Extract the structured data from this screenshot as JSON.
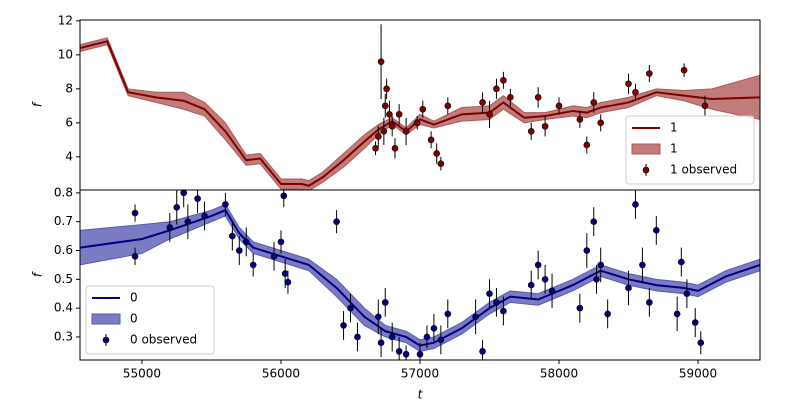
{
  "chart_data": [
    {
      "type": "line",
      "ylabel": "f",
      "xlim": [
        54554,
        59446
      ],
      "ylim": [
        2.05,
        12.05
      ],
      "yticks": [
        4,
        6,
        8,
        10,
        12
      ],
      "legend": "lower right",
      "series": [
        {
          "name": "1",
          "kind": "line",
          "color": "#800000",
          "x": [
            54554,
            54750,
            54900,
            55100,
            55300,
            55450,
            55600,
            55750,
            55850,
            56000,
            56150,
            56200,
            56300,
            56450,
            56600,
            56700,
            56800,
            56900,
            57000,
            57100,
            57300,
            57500,
            57600,
            57750,
            57900,
            58100,
            58200,
            58300,
            58500,
            58700,
            58900,
            59100,
            59446
          ],
          "values": [
            10.4,
            10.8,
            7.8,
            7.5,
            7.3,
            6.8,
            5.5,
            3.8,
            3.9,
            2.4,
            2.4,
            2.3,
            2.8,
            3.8,
            4.9,
            5.6,
            6.1,
            5.5,
            6.2,
            5.9,
            6.5,
            6.6,
            7.2,
            6.3,
            6.4,
            6.7,
            6.6,
            6.9,
            7.2,
            7.8,
            7.6,
            7.4,
            7.5
          ]
        },
        {
          "name": "1",
          "kind": "band",
          "color": "#b05a5a",
          "x": [
            54554,
            54750,
            54900,
            55100,
            55300,
            55450,
            55600,
            55750,
            55850,
            56000,
            56150,
            56200,
            56300,
            56450,
            56600,
            56700,
            56800,
            56900,
            57000,
            57100,
            57300,
            57500,
            57600,
            57750,
            57900,
            58100,
            58200,
            58300,
            58500,
            58700,
            58900,
            59100,
            59446
          ],
          "lower": [
            10.2,
            10.6,
            7.6,
            7.2,
            6.8,
            6.4,
            5.0,
            3.5,
            3.6,
            2.1,
            2.1,
            2.0,
            2.5,
            3.4,
            4.5,
            5.3,
            5.9,
            5.3,
            5.9,
            5.7,
            6.1,
            6.2,
            6.8,
            6.0,
            6.2,
            6.4,
            6.3,
            6.6,
            6.9,
            7.6,
            7.3,
            6.8,
            6.2
          ],
          "upper": [
            10.6,
            11.0,
            8.0,
            7.8,
            7.8,
            7.2,
            6.0,
            4.1,
            4.2,
            2.7,
            2.7,
            2.6,
            3.1,
            4.2,
            5.3,
            5.9,
            6.3,
            5.7,
            6.5,
            6.1,
            6.9,
            7.0,
            7.6,
            6.6,
            6.6,
            7.0,
            6.9,
            7.2,
            7.5,
            8.0,
            7.9,
            8.0,
            8.8
          ]
        },
        {
          "name": "1 observed",
          "kind": "errorbar",
          "color": "#800000",
          "x": [
            56680,
            56700,
            56720,
            56740,
            56750,
            56760,
            56780,
            56800,
            56820,
            56850,
            56900,
            56980,
            57020,
            57080,
            57120,
            57150,
            57200,
            57450,
            57500,
            57550,
            57600,
            57650,
            57800,
            57850,
            57900,
            58000,
            58150,
            58200,
            58250,
            58300,
            58500,
            58550,
            58650,
            58900,
            59050
          ],
          "values": [
            4.5,
            5.2,
            9.6,
            5.5,
            7.0,
            8.0,
            6.5,
            5.8,
            4.5,
            6.5,
            5.5,
            6.0,
            6.8,
            5.0,
            4.2,
            3.6,
            7.0,
            7.2,
            6.5,
            8.0,
            8.5,
            7.5,
            5.5,
            7.5,
            5.8,
            7.0,
            6.2,
            4.7,
            7.2,
            6.0,
            8.3,
            7.8,
            8.9,
            9.1,
            7.0
          ],
          "errors": [
            0.4,
            0.6,
            2.2,
            0.8,
            0.7,
            0.6,
            0.8,
            0.6,
            0.6,
            0.6,
            0.8,
            0.4,
            0.5,
            0.5,
            0.6,
            0.4,
            0.5,
            0.6,
            0.8,
            0.6,
            0.5,
            0.5,
            0.5,
            0.6,
            0.6,
            0.5,
            0.5,
            0.5,
            0.6,
            0.5,
            0.6,
            0.5,
            0.5,
            0.4,
            0.6
          ]
        }
      ]
    },
    {
      "type": "line",
      "ylabel": "f",
      "xlabel": "t",
      "xlim": [
        54554,
        59446
      ],
      "ylim": [
        0.22,
        0.81
      ],
      "xticks": [
        55000,
        56000,
        57000,
        58000,
        59000
      ],
      "yticks": [
        0.3,
        0.4,
        0.5,
        0.6,
        0.7,
        0.8
      ],
      "legend": "lower left",
      "series": [
        {
          "name": "0",
          "kind": "line",
          "color": "#000080",
          "x": [
            54554,
            55000,
            55200,
            55500,
            55600,
            55700,
            55800,
            56000,
            56200,
            56400,
            56600,
            56750,
            56900,
            57000,
            57100,
            57300,
            57500,
            57650,
            57850,
            58100,
            58300,
            58500,
            58700,
            58900,
            59000,
            59200,
            59446
          ],
          "values": [
            0.61,
            0.64,
            0.67,
            0.72,
            0.74,
            0.66,
            0.61,
            0.58,
            0.55,
            0.47,
            0.37,
            0.32,
            0.3,
            0.27,
            0.28,
            0.33,
            0.4,
            0.44,
            0.43,
            0.48,
            0.53,
            0.5,
            0.48,
            0.47,
            0.46,
            0.51,
            0.55
          ]
        },
        {
          "name": "0",
          "kind": "band",
          "color": "#5a5ab4",
          "x": [
            54554,
            55000,
            55200,
            55500,
            55600,
            55700,
            55800,
            56000,
            56200,
            56400,
            56600,
            56750,
            56900,
            57000,
            57100,
            57300,
            57500,
            57650,
            57850,
            58100,
            58300,
            58500,
            58700,
            58900,
            59000,
            59200,
            59446
          ],
          "lower": [
            0.55,
            0.59,
            0.64,
            0.7,
            0.72,
            0.64,
            0.59,
            0.56,
            0.53,
            0.44,
            0.34,
            0.3,
            0.28,
            0.25,
            0.26,
            0.31,
            0.38,
            0.42,
            0.41,
            0.46,
            0.51,
            0.48,
            0.46,
            0.45,
            0.44,
            0.49,
            0.53
          ],
          "upper": [
            0.67,
            0.69,
            0.7,
            0.74,
            0.76,
            0.68,
            0.63,
            0.6,
            0.57,
            0.5,
            0.4,
            0.34,
            0.32,
            0.29,
            0.3,
            0.35,
            0.42,
            0.46,
            0.45,
            0.5,
            0.55,
            0.52,
            0.5,
            0.49,
            0.48,
            0.53,
            0.57
          ]
        },
        {
          "name": "0 observed",
          "kind": "errorbar",
          "color": "#000080",
          "x": [
            54950,
            54950,
            55200,
            55250,
            55300,
            55330,
            55400,
            55450,
            55600,
            55650,
            55700,
            55750,
            55800,
            55950,
            56000,
            56030,
            56050,
            56020,
            56400,
            56450,
            56500,
            56550,
            56700,
            56720,
            56750,
            56800,
            56850,
            56900,
            57000,
            57050,
            57100,
            57150,
            57200,
            57400,
            57450,
            57500,
            57550,
            57600,
            57800,
            57850,
            57900,
            57950,
            58150,
            58200,
            58250,
            58270,
            58300,
            58350,
            58500,
            58550,
            58600,
            58650,
            58700,
            58850,
            58880,
            58920,
            58980,
            59020
          ],
          "values": [
            0.73,
            0.58,
            0.68,
            0.75,
            0.8,
            0.7,
            0.78,
            0.72,
            0.76,
            0.65,
            0.6,
            0.63,
            0.55,
            0.58,
            0.63,
            0.52,
            0.49,
            0.79,
            0.7,
            0.34,
            0.4,
            0.3,
            0.37,
            0.28,
            0.42,
            0.3,
            0.25,
            0.24,
            0.24,
            0.3,
            0.33,
            0.29,
            0.38,
            0.37,
            0.25,
            0.45,
            0.42,
            0.39,
            0.48,
            0.55,
            0.5,
            0.46,
            0.4,
            0.6,
            0.7,
            0.5,
            0.55,
            0.38,
            0.47,
            0.76,
            0.55,
            0.42,
            0.67,
            0.38,
            0.56,
            0.45,
            0.35,
            0.28
          ],
          "errors": [
            0.03,
            0.03,
            0.05,
            0.06,
            0.05,
            0.06,
            0.05,
            0.05,
            0.04,
            0.05,
            0.05,
            0.05,
            0.04,
            0.05,
            0.04,
            0.05,
            0.04,
            0.04,
            0.04,
            0.05,
            0.05,
            0.05,
            0.06,
            0.05,
            0.05,
            0.05,
            0.05,
            0.03,
            0.04,
            0.04,
            0.05,
            0.05,
            0.05,
            0.06,
            0.04,
            0.05,
            0.05,
            0.05,
            0.05,
            0.05,
            0.05,
            0.06,
            0.05,
            0.06,
            0.05,
            0.05,
            0.06,
            0.05,
            0.06,
            0.05,
            0.06,
            0.05,
            0.05,
            0.06,
            0.05,
            0.05,
            0.05,
            0.04
          ]
        }
      ]
    }
  ]
}
